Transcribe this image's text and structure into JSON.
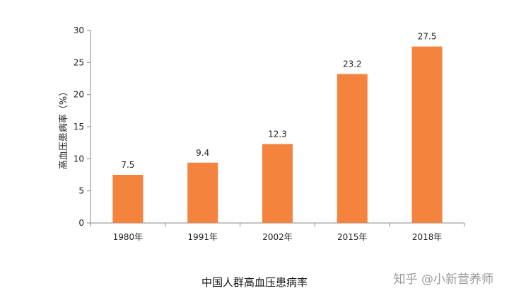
{
  "chart_data": {
    "type": "bar",
    "categories": [
      "1980年",
      "1991年",
      "2002年",
      "2015年",
      "2018年"
    ],
    "values": [
      7.5,
      9.4,
      12.3,
      23.2,
      27.5
    ],
    "data_labels": [
      "7.5",
      "9.4",
      "12.3",
      "23.2",
      "27.5"
    ],
    "title": "中国人群高血压患病率",
    "xlabel": "",
    "ylabel": "高血压患病率（%）",
    "ylim": [
      0,
      30
    ],
    "yticks": [
      0,
      5,
      10,
      15,
      20,
      25,
      30
    ],
    "bar_color": "#F4843D",
    "grid": false,
    "legend": "none"
  },
  "watermark": "知乎 @小新营养师"
}
